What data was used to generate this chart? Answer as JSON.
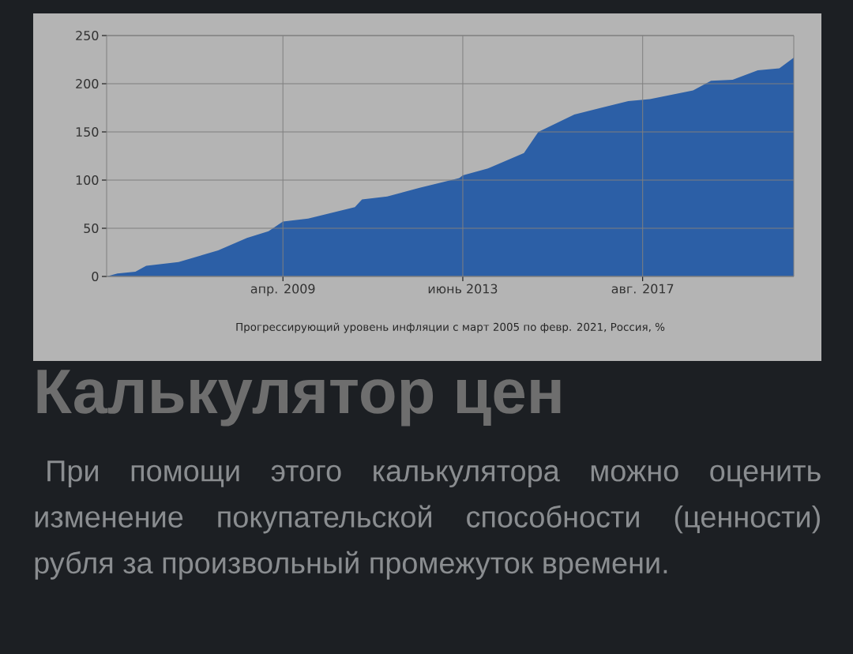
{
  "chart_data": {
    "type": "area",
    "title": "Прогрессирующий уровень инфляции с март 2005 по февр. 2021, Россия, %",
    "x": [
      "2005-03",
      "2005-06",
      "2005-11",
      "2006-02",
      "2006-11",
      "2007-10",
      "2008-06",
      "2008-12",
      "2009-04",
      "2009-11",
      "2010-12",
      "2011-02",
      "2011-09",
      "2012-06",
      "2013-05",
      "2013-06",
      "2014-01",
      "2014-11",
      "2015-03",
      "2016-01",
      "2017-04",
      "2017-10",
      "2018-10",
      "2019-03",
      "2019-09",
      "2020-04",
      "2020-10",
      "2021-02"
    ],
    "series": [
      {
        "color": "#2c5fa6",
        "values": [
          0,
          3,
          5,
          11,
          15,
          27,
          40,
          47,
          57,
          60,
          72,
          80,
          83,
          92,
          102,
          105,
          112,
          128,
          150,
          168,
          182,
          184,
          193,
          203,
          204,
          214,
          216,
          227
        ]
      }
    ],
    "xlim": [
      "2005-03",
      "2021-02"
    ],
    "xticks": [
      {
        "value": "2009-04",
        "label": "апр. 2009"
      },
      {
        "value": "2013-06",
        "label": "июнь 2013"
      },
      {
        "value": "2017-08",
        "label": "авг. 2017"
      }
    ],
    "ylim": [
      0,
      250
    ],
    "yticks": [
      0,
      50,
      100,
      150,
      200,
      250
    ],
    "grid": true,
    "annotations": [
      "Калькулятор цен",
      "При помощи этого калькулятора можно оценить изменение покупательской способности (ценности) рубля за произвольный промежуток времени."
    ]
  }
}
